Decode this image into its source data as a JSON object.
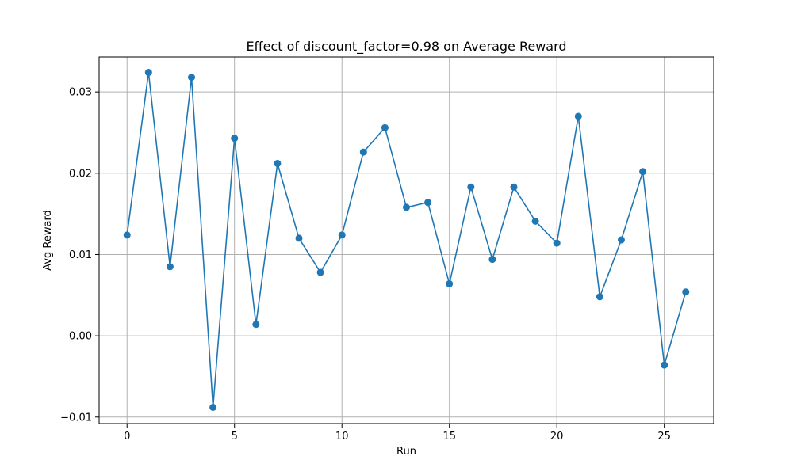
{
  "chart_data": {
    "type": "line",
    "title": "Effect of discount_factor=0.98 on Average Reward",
    "xlabel": "Run",
    "ylabel": "Avg Reward",
    "xlim": [
      -1.3,
      27.3
    ],
    "ylim": [
      -0.0108,
      0.0343
    ],
    "xticks": [
      0,
      5,
      10,
      15,
      20,
      25
    ],
    "xtick_labels": [
      "0",
      "5",
      "10",
      "15",
      "20",
      "25"
    ],
    "yticks": [
      -0.01,
      0.0,
      0.01,
      0.02,
      0.03
    ],
    "ytick_labels": [
      "−0.01",
      "0.00",
      "0.01",
      "0.02",
      "0.03"
    ],
    "grid": true,
    "color": "#1f77b4",
    "marker": "circle",
    "series": [
      {
        "x": [
          0,
          1,
          2,
          3,
          4,
          5,
          6,
          7,
          8,
          9,
          10,
          11,
          12,
          13,
          14,
          15,
          16,
          17,
          18,
          19,
          20,
          21,
          22,
          23,
          24,
          25,
          26
        ],
        "values": [
          0.0124,
          0.0324,
          0.0085,
          0.0318,
          -0.0088,
          0.0243,
          0.0014,
          0.0212,
          0.012,
          0.0078,
          0.0124,
          0.0226,
          0.0256,
          0.0158,
          0.0164,
          0.0064,
          0.0183,
          0.0094,
          0.0183,
          0.0141,
          0.0114,
          0.027,
          0.0048,
          0.0118,
          0.0202,
          -0.0036,
          0.0054
        ]
      }
    ]
  }
}
